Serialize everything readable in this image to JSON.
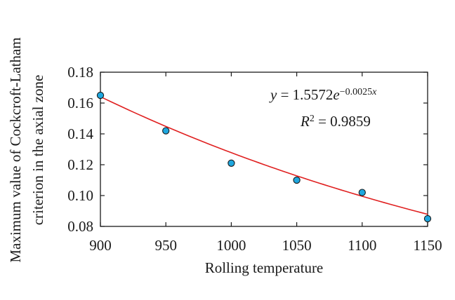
{
  "chart_data": {
    "type": "scatter",
    "title": "",
    "xlabel": "Rolling temperature",
    "ylabel_line1": "Maximum value of Cockcroft-Latham",
    "ylabel_line2": "criterion in the axial zone",
    "xlim": [
      900,
      1150
    ],
    "ylim": [
      0.08,
      0.18
    ],
    "x_ticks": [
      900,
      950,
      1000,
      1050,
      1100,
      1150
    ],
    "x_tick_labels": [
      "900",
      "950",
      "1000",
      "1050",
      "1100",
      "1150"
    ],
    "y_ticks": [
      0.08,
      0.1,
      0.12,
      0.14,
      0.16,
      0.18
    ],
    "y_tick_labels": [
      "0.08",
      "0.10",
      "0.12",
      "0.14",
      "0.16",
      "0.18"
    ],
    "grid": false,
    "series": [
      {
        "x": [
          900,
          950,
          1000,
          1050,
          1100,
          1150
        ],
        "y": [
          0.165,
          0.142,
          0.121,
          0.11,
          0.102,
          0.085
        ],
        "marker_color": "#1ea7df",
        "marker_edge": "#1a1a1a"
      }
    ],
    "trendline": {
      "type": "exponential",
      "a": 1.5572,
      "b": -0.0025,
      "color": "#e02020",
      "equation_y": "y",
      "equation_eq": " = 1.5572",
      "equation_base": "e",
      "equation_exp": "−0.0025",
      "equation_expvar": "x",
      "r2_var": "R",
      "r2_sup": "2",
      "r2_value": " = 0.9859"
    }
  }
}
